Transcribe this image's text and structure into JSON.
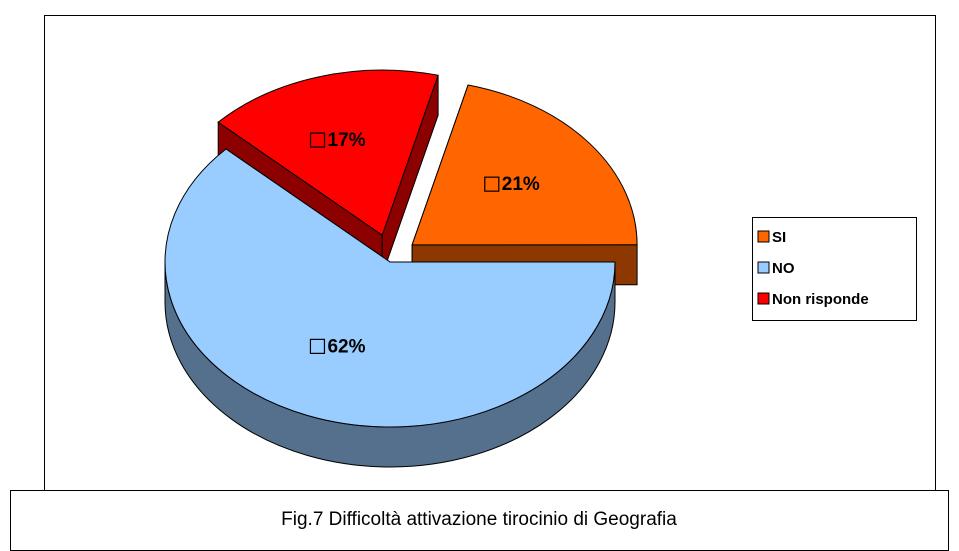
{
  "chart_data": {
    "type": "pie",
    "caption": "Fig.7 Difficoltà attivazione tirocinio di Geografia",
    "categories": [
      "SI",
      "NO",
      "Non risponde"
    ],
    "values": [
      21,
      62,
      17
    ],
    "value_labels": [
      "21%",
      "62%",
      "17%"
    ],
    "colors": [
      "#ff6600",
      "#99ccff",
      "#ff0000"
    ],
    "legend": "right"
  }
}
